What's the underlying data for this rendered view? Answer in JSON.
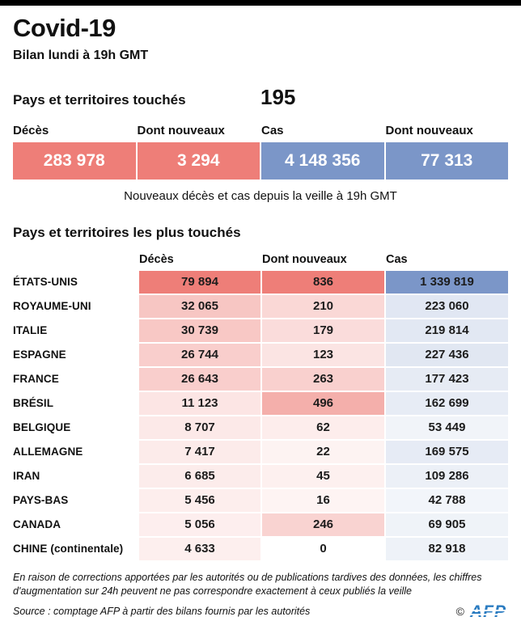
{
  "colors": {
    "top_bar": "#000000",
    "red": "#ee7e78",
    "blue": "#7b96c8",
    "afp_blue": "#2b7cc1"
  },
  "header": {
    "title": "Covid-19",
    "subtitle": "Bilan lundi à 19h GMT"
  },
  "countries_touched": {
    "label": "Pays et territoires touchés",
    "value": "195"
  },
  "summary": {
    "boxes": [
      {
        "label": "Décès",
        "value": "283 978"
      },
      {
        "label": "Dont nouveaux",
        "value": "3 294"
      },
      {
        "label": "Cas",
        "value": "4 148 356"
      },
      {
        "label": "Dont nouveaux",
        "value": "77 313"
      }
    ],
    "caption": "Nouveaux décès et cas depuis la veille à 19h GMT"
  },
  "chart_data": {
    "type": "heatmap",
    "title": "Pays et territoires les plus touchés",
    "columns": [
      "Décès",
      "Dont nouveaux",
      "Cas"
    ],
    "column_palette": [
      "red",
      "red",
      "blue"
    ],
    "countries_affected_total": 195,
    "totals": {
      "deces": 283978,
      "deces_nouveaux": 3294,
      "cas": 4148356,
      "cas_nouveaux": 77313
    },
    "rows": [
      {
        "country": "ÉTATS-UNIS",
        "values": [
          79894,
          836,
          1339819
        ],
        "display": [
          "79 894",
          "836",
          "1 339 819"
        ]
      },
      {
        "country": "ROYAUME-UNI",
        "values": [
          32065,
          210,
          223060
        ],
        "display": [
          "32 065",
          "210",
          "223 060"
        ]
      },
      {
        "country": "ITALIE",
        "values": [
          30739,
          179,
          219814
        ],
        "display": [
          "30 739",
          "179",
          "219 814"
        ]
      },
      {
        "country": "ESPAGNE",
        "values": [
          26744,
          123,
          227436
        ],
        "display": [
          "26 744",
          "123",
          "227 436"
        ]
      },
      {
        "country": "FRANCE",
        "values": [
          26643,
          263,
          177423
        ],
        "display": [
          "26 643",
          "263",
          "177 423"
        ]
      },
      {
        "country": "BRÉSIL",
        "values": [
          11123,
          496,
          162699
        ],
        "display": [
          "11 123",
          "496",
          "162 699"
        ]
      },
      {
        "country": "BELGIQUE",
        "values": [
          8707,
          62,
          53449
        ],
        "display": [
          "8 707",
          "62",
          "53 449"
        ]
      },
      {
        "country": "ALLEMAGNE",
        "values": [
          7417,
          22,
          169575
        ],
        "display": [
          "7 417",
          "22",
          "169 575"
        ]
      },
      {
        "country": "IRAN",
        "values": [
          6685,
          45,
          109286
        ],
        "display": [
          "6 685",
          "45",
          "109 286"
        ]
      },
      {
        "country": "PAYS-BAS",
        "values": [
          5456,
          16,
          42788
        ],
        "display": [
          "5 456",
          "16",
          "42 788"
        ]
      },
      {
        "country": "CANADA",
        "values": [
          5056,
          246,
          69905
        ],
        "display": [
          "5 056",
          "246",
          "69 905"
        ]
      },
      {
        "country": "CHINE (continentale)",
        "values": [
          4633,
          0,
          82918
        ],
        "display": [
          "4 633",
          "0",
          "82 918"
        ]
      }
    ]
  },
  "footer": {
    "note": "En raison de corrections apportées par les autorités ou de publications tardives des données, les chiffres d'augmentation sur 24h peuvent ne pas correspondre exactement à ceux publiés la veille",
    "source": "Source : comptage AFP à partir des bilans fournis par les autorités",
    "copyright": "©",
    "logo": "AFP"
  }
}
